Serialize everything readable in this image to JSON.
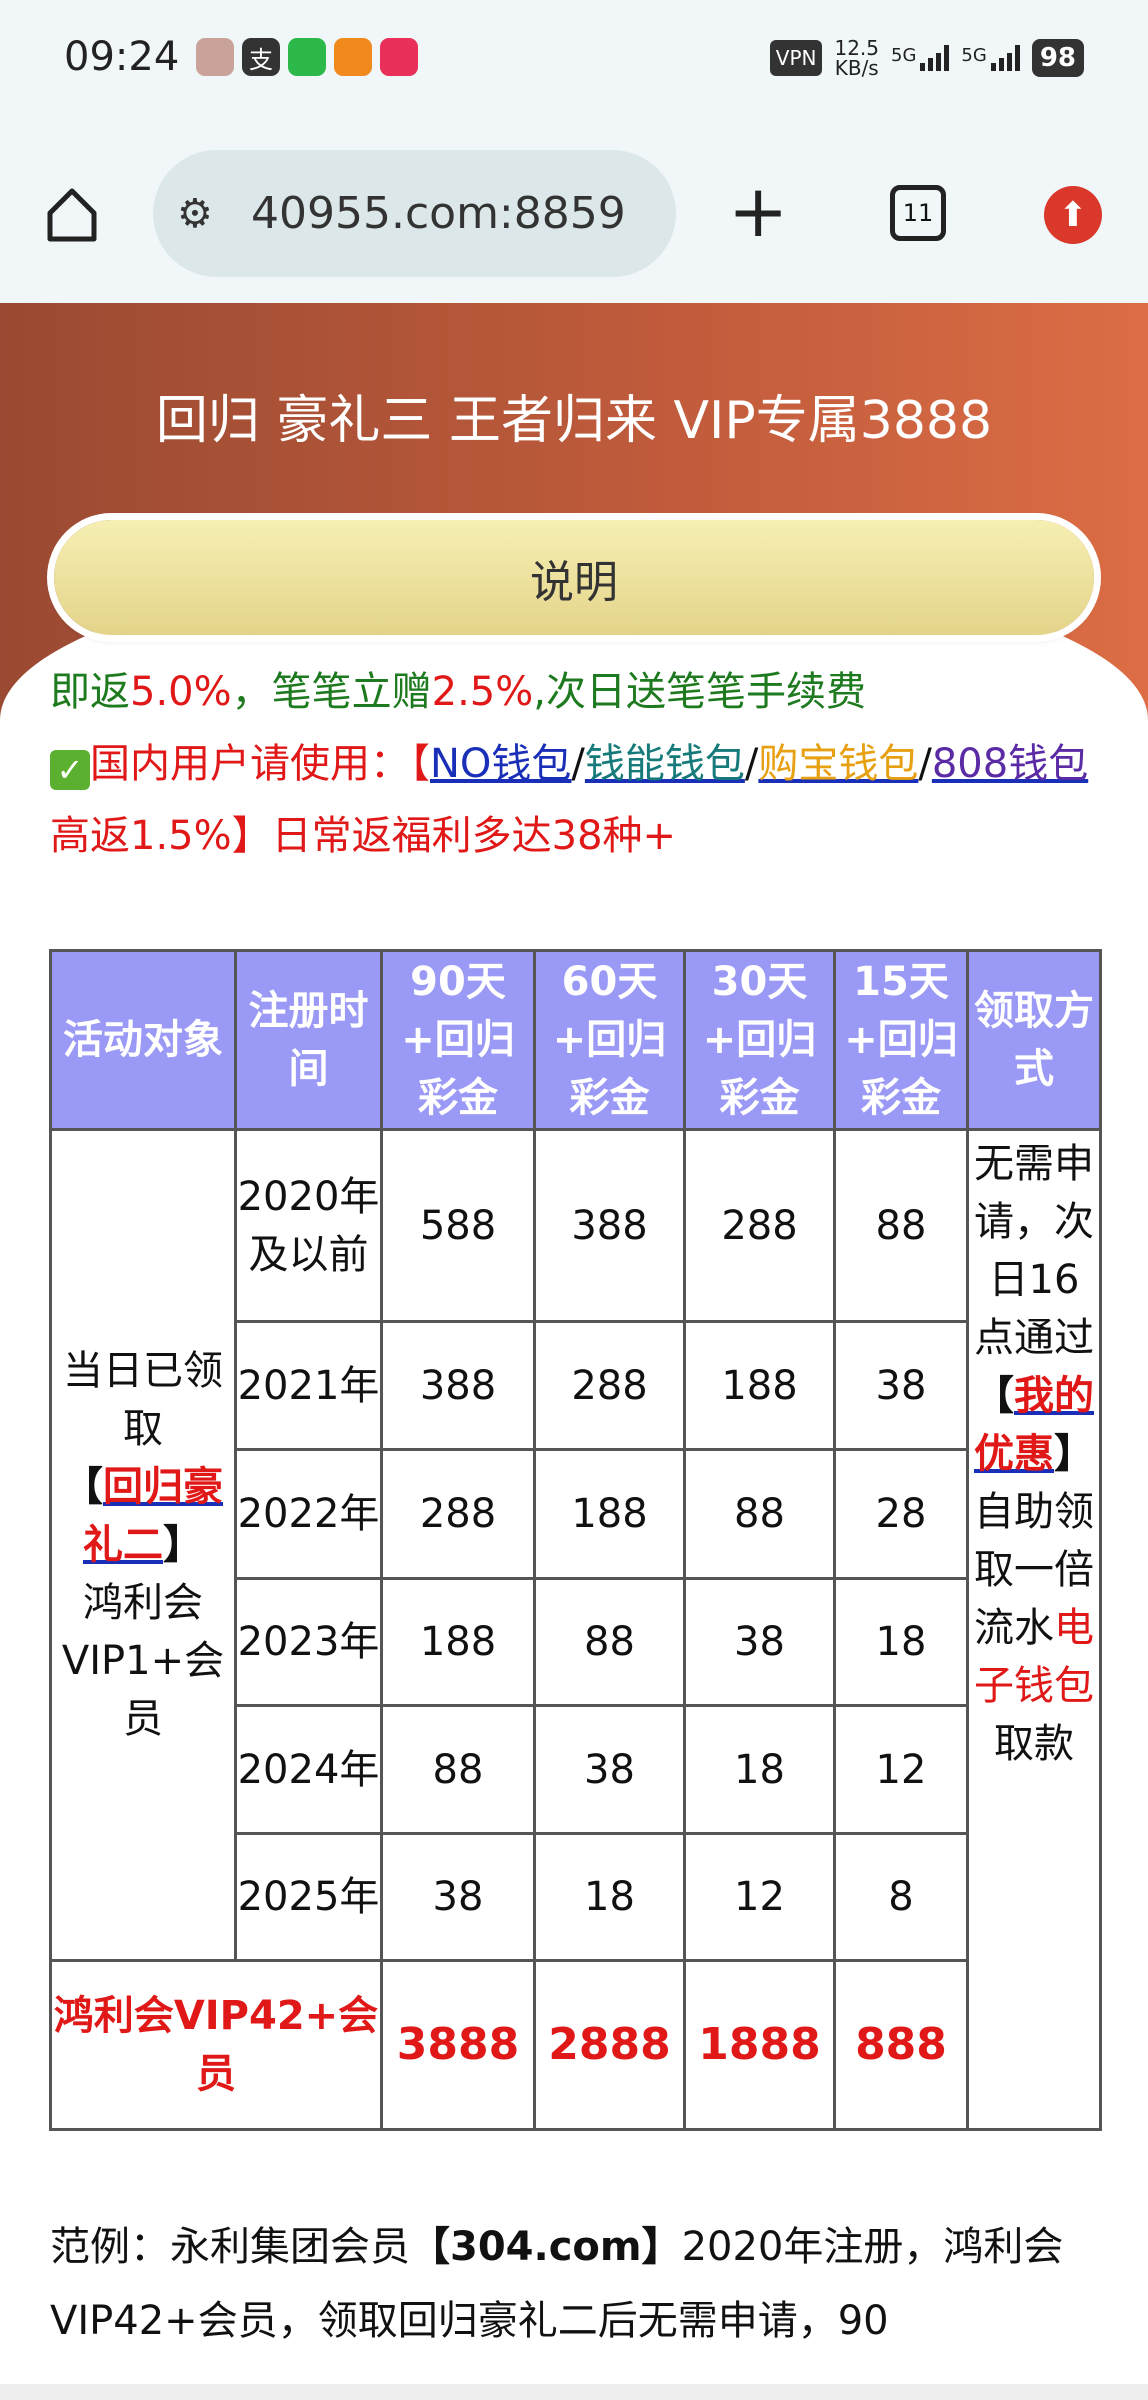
{
  "status_bar": {
    "time": "09:24",
    "app_icons": [
      "pig-avatar-icon",
      "alipay-icon",
      "green-app-icon",
      "orange-app-icon",
      "red-app-icon"
    ],
    "alipay_glyph": "支",
    "vpn": "VPN",
    "speed": "12.5",
    "speed_unit": "KB/s",
    "net1": "5G",
    "net2": "5G",
    "battery": "98"
  },
  "browser": {
    "url": "40955.com:8859",
    "tab_count": "11"
  },
  "banner": {
    "title": "回归 豪礼三 王者归来 VIP专属3888",
    "button": "说明"
  },
  "info": {
    "l1": [
      "即返",
      "5.0%",
      "，笔笔立赠",
      "2.5%",
      ",次日送笔笔手续费"
    ],
    "l2_prefix": "国内用户请使用：【",
    "wallets": [
      "NO钱包",
      "钱能钱包",
      "购宝钱包",
      "808钱包"
    ],
    "sep": "/",
    "l2_suffix": "高返1.5%】",
    "l2_tail": "日常返福利多达38种+"
  },
  "table": {
    "headers": [
      "活动对象",
      "注册时间",
      "90天+回归彩金",
      "60天+回归彩金",
      "30天+回归彩金",
      "15天+回归彩金",
      "领取方式"
    ],
    "target": {
      "pre": "当日已领取",
      "br_open": "【",
      "link": "回归豪礼二",
      "br_close": "】",
      "post": "鸿利会VIP1+会员"
    },
    "rows": [
      [
        "2020年及以前",
        "588",
        "388",
        "288",
        "88"
      ],
      [
        "2021年",
        "388",
        "288",
        "188",
        "38"
      ],
      [
        "2022年",
        "288",
        "188",
        "88",
        "28"
      ],
      [
        "2023年",
        "188",
        "88",
        "38",
        "18"
      ],
      [
        "2024年",
        "88",
        "38",
        "18",
        "12"
      ],
      [
        "2025年",
        "38",
        "18",
        "12",
        "8"
      ]
    ],
    "vip42": {
      "label": "鸿利会VIP42+会员",
      "values": [
        "3888",
        "2888",
        "1888",
        "888"
      ]
    },
    "method": {
      "pre": "无需申请，次日16点通过",
      "br_open": "【",
      "link": "我的优惠",
      "br_close": "】",
      "mid": "自助领取一倍流水",
      "red": "电子钱包",
      "post": "取款"
    }
  },
  "example": {
    "pre": "范例：永利集团会员",
    "bold": "【304.com】",
    "post": "2020年注册，鸿利会VIP42+会员，领取回归豪礼二后无需申请，90"
  },
  "colors": {
    "header_bg": "#9a99f5",
    "banner": "#c15c3c",
    "accent_red": "#e01818",
    "green": "#1e7a1e"
  }
}
